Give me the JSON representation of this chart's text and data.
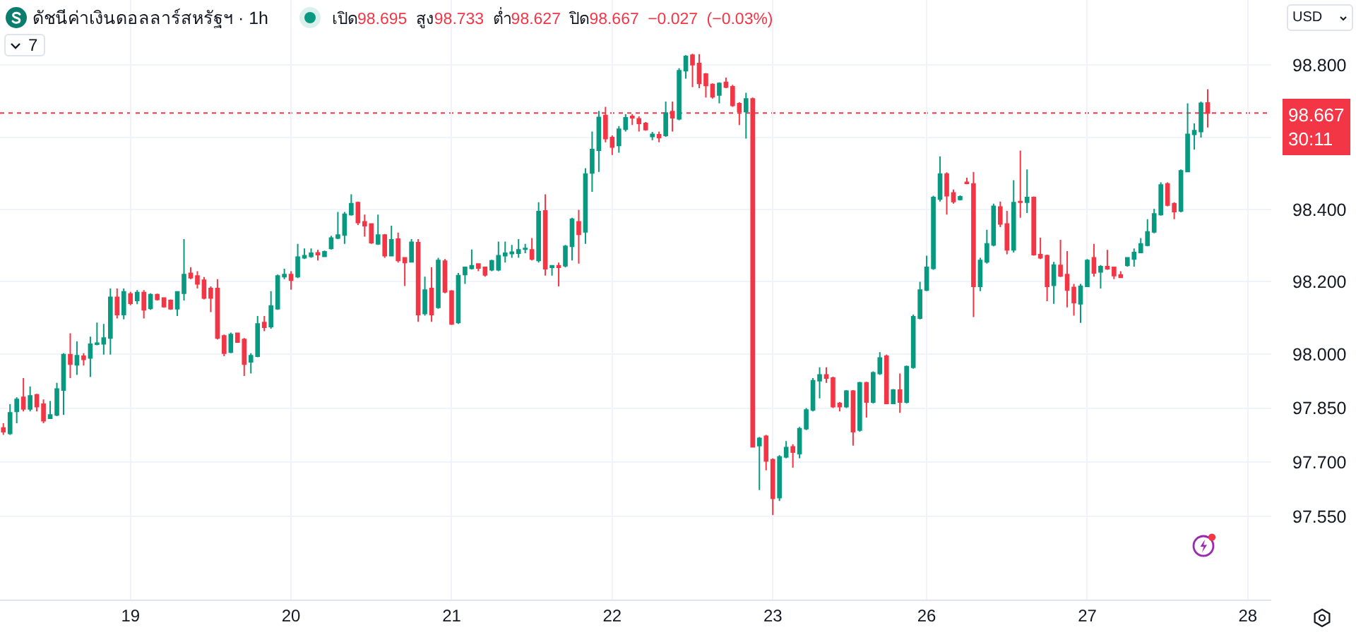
{
  "chart_data": {
    "type": "candlestick",
    "title": "ดัชนีค่าเงินดอลลาร์สหรัฐฯ · 1h",
    "subtitle": "เปิด98.695 สูง98.733 ต่ำ98.627 ปิด98.667 −0.027 (−0.03%)",
    "annotations": [
      "7",
      "USD"
    ],
    "categories": [
      null,
      null,
      null,
      null,
      null,
      null,
      null,
      null,
      null,
      null,
      null,
      null,
      null,
      null,
      null,
      null,
      null,
      null,
      null,
      "19",
      null,
      null,
      null,
      null,
      null,
      null,
      null,
      null,
      null,
      null,
      null,
      null,
      null,
      null,
      null,
      null,
      null,
      null,
      null,
      null,
      null,
      null,
      null,
      "20",
      null,
      null,
      null,
      null,
      null,
      null,
      null,
      null,
      null,
      null,
      null,
      null,
      null,
      null,
      null,
      null,
      null,
      null,
      null,
      null,
      null,
      null,
      null,
      "21",
      null,
      null,
      null,
      null,
      null,
      null,
      null,
      null,
      null,
      null,
      null,
      null,
      null,
      null,
      null,
      null,
      null,
      null,
      null,
      null,
      null,
      null,
      null,
      "22",
      null,
      null,
      null,
      null,
      null,
      null,
      null,
      null,
      null,
      null,
      null,
      null,
      null,
      null,
      null,
      null,
      null,
      null,
      null,
      null,
      null,
      null,
      null,
      "23",
      null,
      null,
      null,
      null,
      null,
      null,
      null,
      null,
      null,
      null,
      null,
      null,
      null,
      null,
      null,
      null,
      null,
      null,
      null,
      null,
      null,
      null,
      "26",
      null,
      null,
      null,
      null,
      null,
      null,
      null,
      null,
      null,
      null,
      null,
      null,
      null,
      null,
      null,
      null,
      null,
      null,
      null,
      null,
      null,
      null,
      null,
      "27",
      null,
      null,
      null,
      null,
      null,
      null,
      null,
      null,
      null,
      null,
      null,
      null,
      null,
      null,
      null,
      null,
      null,
      null,
      null,
      null,
      null,
      null,
      null,
      "28",
      null,
      null,
      null
    ],
    "ohlc": [
      [
        97.795,
        97.808,
        97.776,
        97.785
      ],
      [
        97.78,
        97.861,
        97.776,
        97.837
      ],
      [
        97.841,
        97.88,
        97.808,
        97.874
      ],
      [
        97.88,
        97.933,
        97.841,
        97.848
      ],
      [
        97.848,
        97.91,
        97.841,
        97.884
      ],
      [
        97.887,
        97.89,
        97.841,
        97.854
      ],
      [
        97.861,
        97.874,
        97.808,
        97.815
      ],
      [
        97.822,
        97.87,
        97.82,
        97.831
      ],
      [
        97.831,
        97.92,
        97.828,
        97.903
      ],
      [
        97.9,
        98.002,
        97.831,
        97.998
      ],
      [
        97.998,
        98.057,
        97.933,
        97.972
      ],
      [
        97.97,
        98.035,
        97.942,
        97.995
      ],
      [
        97.994,
        98.002,
        97.968,
        97.985
      ],
      [
        97.989,
        98.048,
        97.936,
        98.027
      ],
      [
        98.027,
        98.087,
        98.024,
        98.03
      ],
      [
        98.028,
        98.083,
        97.998,
        98.044
      ],
      [
        98.044,
        98.181,
        97.998,
        98.157
      ],
      [
        98.157,
        98.181,
        98.098,
        98.109
      ],
      [
        98.109,
        98.181,
        98.096,
        98.172
      ],
      [
        98.166,
        98.172,
        98.135,
        98.14
      ],
      [
        98.148,
        98.177,
        98.138,
        98.17
      ],
      [
        98.17,
        98.177,
        98.098,
        98.122
      ],
      [
        98.126,
        98.168,
        98.122,
        98.164
      ],
      [
        98.164,
        98.167,
        98.148,
        98.151
      ],
      [
        98.155,
        98.157,
        98.128,
        98.131
      ],
      [
        98.148,
        98.151,
        98.122,
        98.125
      ],
      [
        98.125,
        98.174,
        98.105,
        98.172
      ],
      [
        98.168,
        98.318,
        98.148,
        98.22
      ],
      [
        98.223,
        98.24,
        98.207,
        98.211
      ],
      [
        98.216,
        98.229,
        98.181,
        98.194
      ],
      [
        98.204,
        98.213,
        98.151,
        98.155
      ],
      [
        98.181,
        98.187,
        98.116,
        98.155
      ],
      [
        98.181,
        98.207,
        98.04,
        98.044
      ],
      [
        98.05,
        98.054,
        97.994,
        98.002
      ],
      [
        98.005,
        98.059,
        98.002,
        98.054
      ],
      [
        98.057,
        98.059,
        98.031,
        98.033
      ],
      [
        98.04,
        98.044,
        97.939,
        97.972
      ],
      [
        97.978,
        98.002,
        97.946,
        97.995
      ],
      [
        97.994,
        98.105,
        97.991,
        98.083
      ],
      [
        98.087,
        98.105,
        98.063,
        98.074
      ],
      [
        98.076,
        98.174,
        98.07,
        98.133
      ],
      [
        98.125,
        98.22,
        98.122,
        98.216
      ],
      [
        98.214,
        98.236,
        98.207,
        98.22
      ],
      [
        98.22,
        98.229,
        98.178,
        98.204
      ],
      [
        98.214,
        98.305,
        98.21,
        98.268
      ],
      [
        98.266,
        98.292,
        98.263,
        98.272
      ],
      [
        98.27,
        98.292,
        98.266,
        98.279
      ],
      [
        98.28,
        98.288,
        98.259,
        98.275
      ],
      [
        98.27,
        98.286,
        98.268,
        98.283
      ],
      [
        98.292,
        98.327,
        98.289,
        98.321
      ],
      [
        98.321,
        98.393,
        98.318,
        98.329
      ],
      [
        98.329,
        98.393,
        98.305,
        98.387
      ],
      [
        98.386,
        98.442,
        98.383,
        98.416
      ],
      [
        98.419,
        98.422,
        98.357,
        98.364
      ],
      [
        98.366,
        98.386,
        98.325,
        98.355
      ],
      [
        98.36,
        98.361,
        98.305,
        98.308
      ],
      [
        98.305,
        98.386,
        98.302,
        98.329
      ],
      [
        98.329,
        98.332,
        98.266,
        98.272
      ],
      [
        98.272,
        98.355,
        98.27,
        98.316
      ],
      [
        98.318,
        98.336,
        98.253,
        98.259
      ],
      [
        98.266,
        98.268,
        98.188,
        98.253
      ],
      [
        98.255,
        98.318,
        98.253,
        98.309
      ],
      [
        98.308,
        98.318,
        98.089,
        98.109
      ],
      [
        98.112,
        98.214,
        98.106,
        98.177
      ],
      [
        98.181,
        98.24,
        98.089,
        98.109
      ],
      [
        98.129,
        98.266,
        98.125,
        98.259
      ],
      [
        98.257,
        98.263,
        98.168,
        98.172
      ],
      [
        98.174,
        98.177,
        98.08,
        98.083
      ],
      [
        98.087,
        98.224,
        98.083,
        98.217
      ],
      [
        98.22,
        98.242,
        98.194,
        98.24
      ],
      [
        98.237,
        98.289,
        98.234,
        98.244
      ],
      [
        98.249,
        98.25,
        98.229,
        98.238
      ],
      [
        98.24,
        98.242,
        98.214,
        98.219
      ],
      [
        98.233,
        98.261,
        98.229,
        98.258
      ],
      [
        98.233,
        98.311,
        98.229,
        98.272
      ],
      [
        98.272,
        98.311,
        98.253,
        98.279
      ],
      [
        98.278,
        98.302,
        98.266,
        98.282
      ],
      [
        98.279,
        98.318,
        98.266,
        98.288
      ],
      [
        98.29,
        98.305,
        98.279,
        98.292
      ],
      [
        98.288,
        98.321,
        98.259,
        98.263
      ],
      [
        98.259,
        98.42,
        98.253,
        98.394
      ],
      [
        98.396,
        98.442,
        98.217,
        98.236
      ],
      [
        98.24,
        98.246,
        98.217,
        98.244
      ],
      [
        98.244,
        98.253,
        98.187,
        98.24
      ],
      [
        98.244,
        98.302,
        98.24,
        98.298
      ],
      [
        98.298,
        98.377,
        98.259,
        98.373
      ],
      [
        98.366,
        98.399,
        98.25,
        98.331
      ],
      [
        98.338,
        98.514,
        98.305,
        98.498
      ],
      [
        98.501,
        98.616,
        98.449,
        98.566
      ],
      [
        98.564,
        98.673,
        98.504,
        98.655
      ],
      [
        98.66,
        98.684,
        98.586,
        98.596
      ],
      [
        98.599,
        98.605,
        98.551,
        98.573
      ],
      [
        98.577,
        98.631,
        98.557,
        98.622
      ],
      [
        98.622,
        98.664,
        98.616,
        98.654
      ],
      [
        98.658,
        98.664,
        98.634,
        98.654
      ],
      [
        98.651,
        98.658,
        98.616,
        98.638
      ],
      [
        98.638,
        98.642,
        98.618,
        98.621
      ],
      [
        98.602,
        98.615,
        98.592,
        98.608
      ],
      [
        98.607,
        98.616,
        98.586,
        98.599
      ],
      [
        98.605,
        98.699,
        98.601,
        98.667
      ],
      [
        98.671,
        98.699,
        98.616,
        98.654
      ],
      [
        98.651,
        98.791,
        98.647,
        98.784
      ],
      [
        98.784,
        98.827,
        98.762,
        98.824
      ],
      [
        98.827,
        98.831,
        98.739,
        98.801
      ],
      [
        98.804,
        98.83,
        98.736,
        98.749
      ],
      [
        98.775,
        98.778,
        98.71,
        98.743
      ],
      [
        98.746,
        98.749,
        98.707,
        98.712
      ],
      [
        98.717,
        98.752,
        98.694,
        98.749
      ],
      [
        98.752,
        98.765,
        98.736,
        98.739
      ],
      [
        98.74,
        98.745,
        98.684,
        98.688
      ],
      [
        98.693,
        98.697,
        98.634,
        98.671
      ],
      [
        98.671,
        98.723,
        98.596,
        98.706
      ],
      [
        98.706,
        98.71,
        97.741,
        97.743
      ],
      [
        97.746,
        97.77,
        97.623,
        97.766
      ],
      [
        97.772,
        97.776,
        97.678,
        97.704
      ],
      [
        97.707,
        97.711,
        97.554,
        97.6
      ],
      [
        97.602,
        97.72,
        97.593,
        97.715
      ],
      [
        97.715,
        97.759,
        97.711,
        97.741
      ],
      [
        97.743,
        97.75,
        97.685,
        97.728
      ],
      [
        97.724,
        97.798,
        97.711,
        97.793
      ],
      [
        97.793,
        97.85,
        97.789,
        97.845
      ],
      [
        97.845,
        97.933,
        97.841,
        97.926
      ],
      [
        97.926,
        97.963,
        97.877,
        97.942
      ],
      [
        97.942,
        97.963,
        97.92,
        97.933
      ],
      [
        97.933,
        97.937,
        97.85,
        97.854
      ],
      [
        97.863,
        97.867,
        97.841,
        97.854
      ],
      [
        97.854,
        97.9,
        97.85,
        97.897
      ],
      [
        97.897,
        97.9,
        97.746,
        97.785
      ],
      [
        97.789,
        97.923,
        97.785,
        97.92
      ],
      [
        97.92,
        97.923,
        97.824,
        97.867
      ],
      [
        97.867,
        97.952,
        97.863,
        97.948
      ],
      [
        97.946,
        98.005,
        97.942,
        97.989
      ],
      [
        97.994,
        97.998,
        97.861,
        97.863
      ],
      [
        97.863,
        97.903,
        97.861,
        97.9
      ],
      [
        97.9,
        97.946,
        97.837,
        97.867
      ],
      [
        97.867,
        97.968,
        97.863,
        97.965
      ],
      [
        97.963,
        98.109,
        97.959,
        98.103
      ],
      [
        98.099,
        98.2,
        98.096,
        98.177
      ],
      [
        98.177,
        98.272,
        98.174,
        98.24
      ],
      [
        98.237,
        98.438,
        98.233,
        98.433
      ],
      [
        98.429,
        98.547,
        98.422,
        98.498
      ],
      [
        98.498,
        98.503,
        98.386,
        98.438
      ],
      [
        98.446,
        98.455,
        98.416,
        98.422
      ],
      [
        98.428,
        98.439,
        98.425,
        98.435
      ],
      [
        98.475,
        98.488,
        98.47,
        98.472
      ],
      [
        98.471,
        98.504,
        98.102,
        98.187
      ],
      [
        98.187,
        98.266,
        98.174,
        98.259
      ],
      [
        98.255,
        98.344,
        98.25,
        98.305
      ],
      [
        98.302,
        98.416,
        98.298,
        98.409
      ],
      [
        98.407,
        98.422,
        98.351,
        98.36
      ],
      [
        98.36,
        98.396,
        98.276,
        98.288
      ],
      [
        98.288,
        98.481,
        98.281,
        98.419
      ],
      [
        98.422,
        98.563,
        98.377,
        98.42
      ],
      [
        98.42,
        98.511,
        98.39,
        98.433
      ],
      [
        98.433,
        98.436,
        98.272,
        98.275
      ],
      [
        98.275,
        98.322,
        98.263,
        98.266
      ],
      [
        98.272,
        98.275,
        98.146,
        98.187
      ],
      [
        98.19,
        98.255,
        98.139,
        98.246
      ],
      [
        98.245,
        98.316,
        98.213,
        98.216
      ],
      [
        98.22,
        98.285,
        98.129,
        98.177
      ],
      [
        98.184,
        98.194,
        98.106,
        98.142
      ],
      [
        98.139,
        98.194,
        98.086,
        98.187
      ],
      [
        98.187,
        98.263,
        98.185,
        98.259
      ],
      [
        98.266,
        98.305,
        98.214,
        98.224
      ],
      [
        98.227,
        98.246,
        98.181,
        98.242
      ],
      [
        98.242,
        98.288,
        98.233,
        98.236
      ],
      [
        98.24,
        98.242,
        98.207,
        98.217
      ],
      [
        98.219,
        98.229,
        98.21,
        98.212
      ],
      [
        98.245,
        98.268,
        98.242,
        98.266
      ],
      [
        98.263,
        98.292,
        98.242,
        98.281
      ],
      [
        98.281,
        98.321,
        98.279,
        98.305
      ],
      [
        98.301,
        98.373,
        98.298,
        98.338
      ],
      [
        98.338,
        98.402,
        98.334,
        98.388
      ],
      [
        98.386,
        98.475,
        98.383,
        98.468
      ],
      [
        98.471,
        98.475,
        98.409,
        98.412
      ],
      [
        98.416,
        98.42,
        98.373,
        98.394
      ],
      [
        98.396,
        98.511,
        98.392,
        98.507
      ],
      [
        98.505,
        98.694,
        98.503,
        98.608
      ],
      [
        98.608,
        98.638,
        98.566,
        98.618
      ],
      [
        98.616,
        98.699,
        98.599,
        98.694
      ],
      [
        98.695,
        98.733,
        98.627,
        98.667
      ],
      null,
      null,
      null,
      null,
      null,
      null,
      null,
      null,
      null
    ],
    "colors": [
      "#f23645",
      "#089981",
      "#089981",
      "#f23645",
      "#089981",
      "#f23645",
      "#f23645",
      "#089981",
      "#089981",
      "#089981",
      "#f23645",
      "#089981",
      "#f23645",
      "#089981",
      "#089981",
      "#089981",
      "#089981",
      "#f23645",
      "#089981",
      "#f23645",
      "#089981",
      "#f23645",
      "#089981",
      "#f23645",
      "#f23645",
      "#f23645",
      "#089981",
      "#089981",
      "#f23645",
      "#f23645",
      "#f23645",
      "#f23645",
      "#f23645",
      "#f23645",
      "#089981",
      "#f23645",
      "#f23645",
      "#089981",
      "#089981",
      "#f23645",
      "#089981",
      "#089981",
      "#089981",
      "#f23645",
      "#089981",
      "#089981",
      "#089981",
      "#f23645",
      "#089981",
      "#089981",
      "#089981",
      "#089981",
      "#089981",
      "#f23645",
      "#f23645",
      "#f23645",
      "#089981",
      "#f23645",
      "#089981",
      "#f23645",
      "#f23645",
      "#089981",
      "#f23645",
      "#089981",
      "#f23645",
      "#089981",
      "#f23645",
      "#f23645",
      "#089981",
      "#089981",
      "#089981",
      "#f23645",
      "#f23645",
      "#089981",
      "#089981",
      "#089981",
      "#089981",
      "#089981",
      "#089981",
      "#f23645",
      "#089981",
      "#f23645",
      "#089981",
      "#f23645",
      "#089981",
      "#089981",
      "#f23645",
      "#089981",
      "#089981",
      "#089981",
      "#f23645",
      "#f23645",
      "#089981",
      "#089981",
      "#f23645",
      "#f23645",
      "#f23645",
      "#089981",
      "#f23645",
      "#089981",
      "#f23645",
      "#089981",
      "#089981",
      "#f23645",
      "#f23645",
      "#f23645",
      "#f23645",
      "#089981",
      "#f23645",
      "#f23645",
      "#f23645",
      "#089981",
      "#f23645",
      "#089981",
      "#f23645",
      "#f23645",
      "#089981",
      "#089981",
      "#f23645",
      "#089981",
      "#089981",
      "#089981",
      "#089981",
      "#f23645",
      "#f23645",
      "#f23645",
      "#089981",
      "#f23645",
      "#089981",
      "#f23645",
      "#089981",
      "#089981",
      "#f23645",
      "#089981",
      "#f23645",
      "#089981",
      "#089981",
      "#089981",
      "#089981",
      "#089981",
      "#089981",
      "#f23645",
      "#f23645",
      "#089981",
      "#f23645",
      "#f23645",
      "#089981",
      "#089981",
      "#089981",
      "#f23645",
      "#f23645",
      "#089981",
      "#f23645",
      "#089981",
      "#f23645",
      "#f23645",
      "#f23645",
      "#089981",
      "#f23645",
      "#f23645",
      "#f23645",
      "#089981",
      "#089981",
      "#f23645",
      "#089981",
      "#f23645",
      "#f23645",
      "#f23645",
      "#089981",
      "#089981",
      "#089981",
      "#089981",
      "#089981",
      "#089981",
      "#f23645",
      "#f23645",
      "#089981",
      "#089981",
      "#089981",
      "#089981",
      "#f23645",
      null,
      null,
      null,
      null,
      null,
      null,
      null,
      null,
      null
    ],
    "ylim": [
      97.32,
      98.98
    ],
    "yticks": [
      {
        "value": 97.55,
        "label": "97.550"
      },
      {
        "value": 97.7,
        "label": "97.700"
      },
      {
        "value": 97.85,
        "label": "97.850"
      },
      {
        "value": 98.0,
        "label": "98.000"
      },
      {
        "value": 98.2,
        "label": "98.200"
      },
      {
        "value": 98.4,
        "label": "98.400"
      },
      {
        "value": 98.6,
        "label": null
      },
      {
        "value": 98.8,
        "label": "98.800"
      }
    ],
    "grid": true,
    "ref_lines": [
      {
        "axis": "y",
        "value": 98.667,
        "label": "98.667\n30:11",
        "color": "#f23645",
        "line_style": "dotted"
      }
    ]
  }
}
